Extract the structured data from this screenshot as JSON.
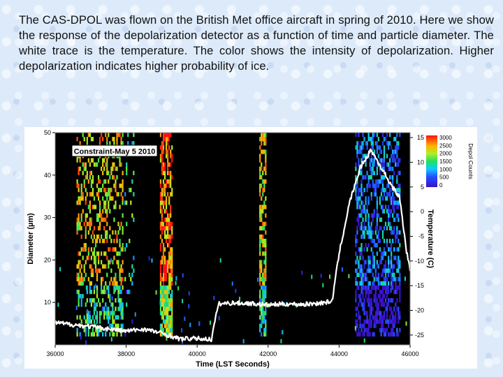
{
  "caption": "The CAS-DPOL was flown on the British Met office aircraft in spring of 2010. Here we show the response of the depolarization detector as a function of time and particle diameter. The white trace is the temperature. The color shows the intensity of depolarization. Higher depolarization indicates higher probability of ice.",
  "chart_data": {
    "type": "heatmap",
    "title": "Constraint-May 5 2010",
    "xlabel": "Time (LST Seconds)",
    "ylabel": "Diameter (µm)",
    "y2label": "Temperature (C)",
    "xlim": [
      36000,
      46000
    ],
    "ylim": [
      0,
      50
    ],
    "y2lim": [
      -27,
      16
    ],
    "xticks": [
      "36000",
      "38000",
      "40000",
      "42000",
      "44000",
      "46000"
    ],
    "yticks": [
      "10",
      "20",
      "30",
      "40",
      "50"
    ],
    "y2ticks": [
      "-25",
      "-20",
      "-15",
      "-10",
      "-5",
      "0",
      "5",
      "10",
      "15"
    ],
    "colorbar": {
      "label": "Depol Counts",
      "ticks": [
        "3000",
        "2500",
        "2000",
        "1500",
        "1000",
        "500",
        "0"
      ],
      "range": [
        0,
        3000
      ]
    },
    "grid": false,
    "background_color": "#000000",
    "depol_bands": [
      {
        "x_start": 36600,
        "x_end": 37900,
        "density": 0.42,
        "peak_counts": 2200
      },
      {
        "x_start": 37950,
        "x_end": 38200,
        "density": 0.15,
        "peak_counts": 1400
      },
      {
        "x_start": 38950,
        "x_end": 39300,
        "density": 0.75,
        "peak_counts": 2600
      },
      {
        "x_start": 41750,
        "x_end": 41950,
        "density": 0.7,
        "peak_counts": 2100
      },
      {
        "x_start": 44450,
        "x_end": 45700,
        "density": 0.55,
        "peak_counts": 700
      }
    ],
    "temperature_series": {
      "name": "Temperature",
      "color": "#ffffff",
      "x": [
        36000,
        37000,
        38000,
        38500,
        39000,
        39500,
        40000,
        40400,
        40600,
        41000,
        41500,
        42000,
        42500,
        43000,
        43500,
        43800,
        44000,
        44300,
        44600,
        44900,
        45100,
        45300,
        45500,
        45700,
        45900,
        46000
      ],
      "y": [
        -22.5,
        -23.3,
        -24.2,
        -23.8,
        -24.6,
        -25.8,
        -25.7,
        -25.9,
        -18.7,
        -18.5,
        -18.6,
        -18.9,
        -18.7,
        -18.8,
        -18.5,
        -18.2,
        -8.5,
        2.0,
        9.0,
        12.5,
        10.0,
        7.5,
        5.0,
        3.0,
        -8.0,
        -12.0
      ]
    }
  }
}
